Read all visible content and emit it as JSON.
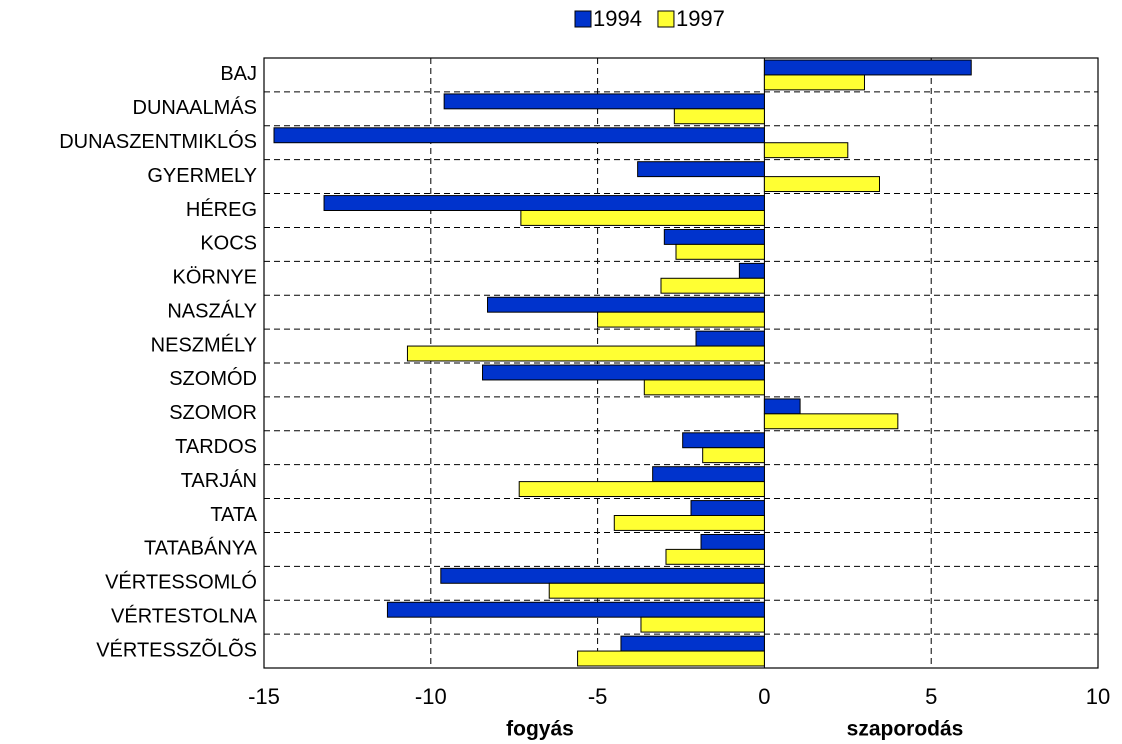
{
  "chart_data": {
    "type": "bar",
    "orientation": "horizontal",
    "categories": [
      "BAJ",
      "DUNAALMÁS",
      "DUNASZENTMIKLÓS",
      "GYERMELY",
      "HÉREG",
      "KOCS",
      "KÖRNYE",
      "NASZÁLY",
      "NESZMÉLY",
      "SZOMÓD",
      "SZOMOR",
      "TARDOS",
      "TARJÁN",
      "TATA",
      "TATABÁNYA",
      "VÉRTESSOMLÓ",
      "VÉRTESTOLNA",
      "VÉRTESSZÕLÕS"
    ],
    "series": [
      {
        "name": "1994",
        "color": "#0033cc",
        "values": [
          6.2,
          -9.6,
          -14.7,
          -3.8,
          -13.2,
          -3.0,
          -0.75,
          -8.3,
          -2.05,
          -8.45,
          1.07,
          -2.45,
          -3.35,
          -2.2,
          -1.9,
          -9.7,
          -11.3,
          -4.3
        ]
      },
      {
        "name": "1997",
        "color": "#ffff33",
        "values": [
          3.0,
          -2.7,
          2.5,
          3.45,
          -7.3,
          -2.65,
          -3.1,
          -5.0,
          -10.7,
          -3.6,
          4.0,
          -1.85,
          -7.35,
          -4.5,
          -2.95,
          -6.45,
          -3.7,
          -5.6
        ]
      }
    ],
    "xlim": [
      -15,
      10
    ],
    "xticks": [
      -15,
      -10,
      -5,
      0,
      5,
      10
    ],
    "grid": true,
    "x_annotations": [
      "fogyás",
      "szaporodás"
    ],
    "legend": "top"
  }
}
